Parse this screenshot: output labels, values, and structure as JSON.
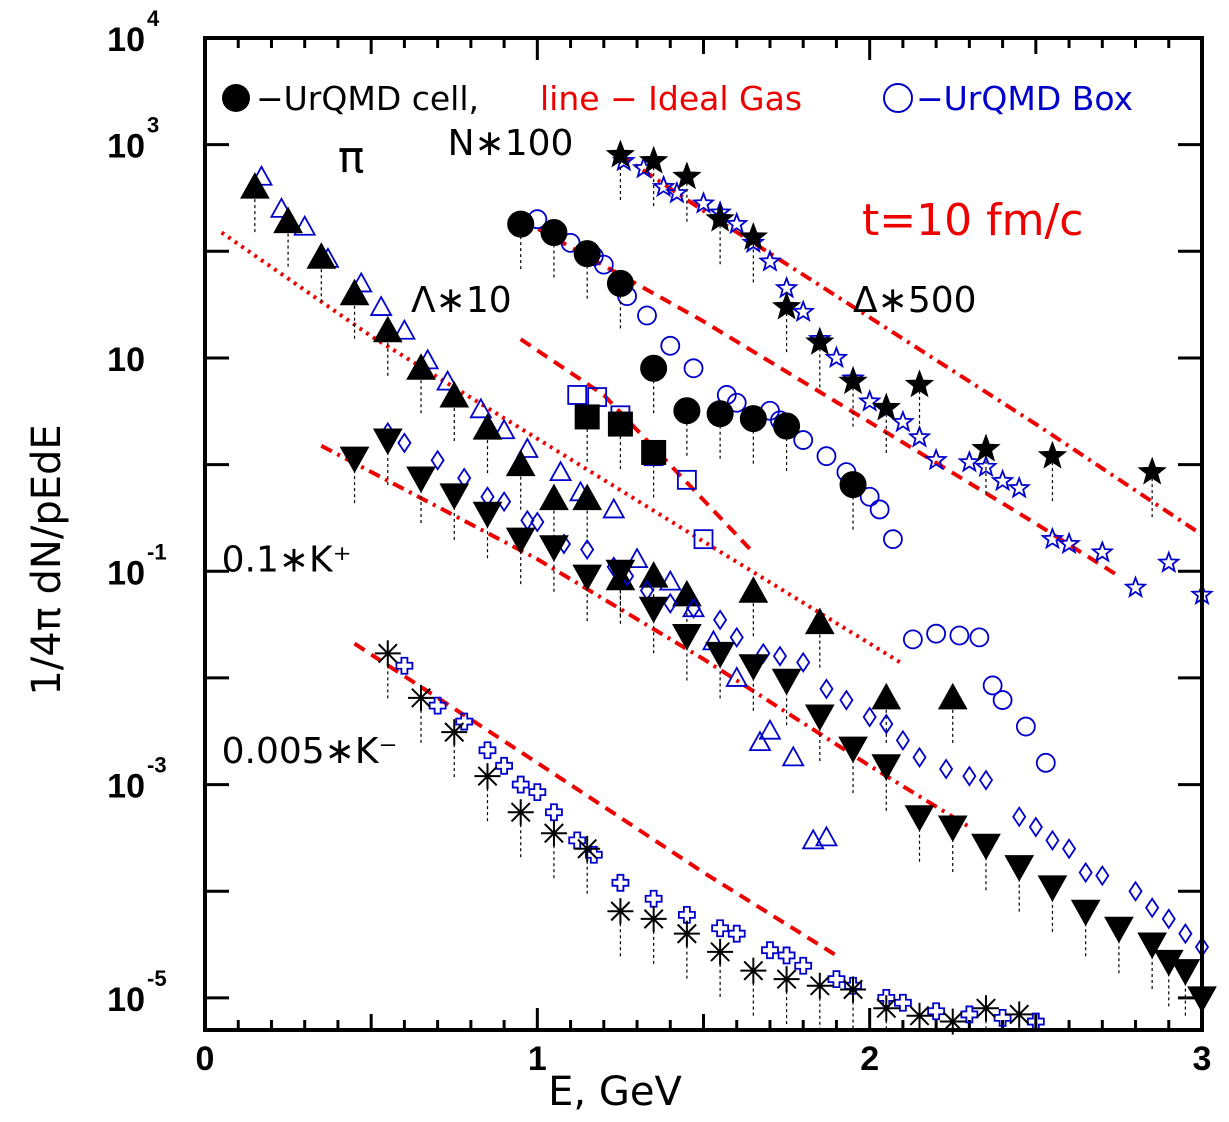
{
  "chart_data": {
    "type": "scatter",
    "xlabel": "E, GeV",
    "ylabel": "1/4π dN/pEdE",
    "xlim": [
      0,
      3
    ],
    "ylim": [
      5e-06,
      10000
    ],
    "yscale": "log",
    "x_ticks": [
      0,
      1,
      2,
      3
    ],
    "y_ticks": [
      {
        "value": 10000,
        "base": "10",
        "exp": "4"
      },
      {
        "value": 1000,
        "base": "10",
        "exp": "3"
      },
      {
        "value": 10,
        "base": "10",
        "exp": ""
      },
      {
        "value": 0.1,
        "base": "10",
        "exp": "-1"
      },
      {
        "value": 0.001,
        "base": "10",
        "exp": "-3"
      },
      {
        "value": 1e-05,
        "base": "10",
        "exp": "-5"
      }
    ],
    "legend": {
      "cell_text": "−UrQMD cell,",
      "gas_text": "line − Ideal Gas",
      "box_text": "−UrQMD Box"
    },
    "time_label": "t=10 fm/c",
    "colors": {
      "cell": "#000000",
      "box": "#0000cc",
      "gas": "#ee0000"
    },
    "species": [
      {
        "label": "π",
        "cell_marker": "triangle-up",
        "box_marker": "triangle-up-open",
        "cell": [
          [
            0.15,
            400
          ],
          [
            0.25,
            190
          ],
          [
            0.35,
            88
          ],
          [
            0.45,
            40
          ],
          [
            0.55,
            18
          ],
          [
            0.65,
            8
          ],
          [
            0.75,
            4.4
          ],
          [
            0.85,
            2.2
          ],
          [
            0.95,
            1.0
          ],
          [
            1.05,
            0.48
          ],
          [
            1.15,
            0.48
          ],
          [
            1.25,
            0.085
          ],
          [
            1.35,
            0.09
          ],
          [
            1.45,
            0.06
          ],
          [
            1.65,
            0.065
          ],
          [
            1.85,
            0.033
          ],
          [
            2.05,
            0.0065
          ],
          [
            2.25,
            0.0065
          ]
        ],
        "box": [
          [
            0.17,
            500
          ],
          [
            0.23,
            250
          ],
          [
            0.3,
            170
          ],
          [
            0.37,
            85
          ],
          [
            0.47,
            50
          ],
          [
            0.53,
            30
          ],
          [
            0.6,
            18
          ],
          [
            0.67,
            9.5
          ],
          [
            0.73,
            6
          ],
          [
            0.83,
            3.3
          ],
          [
            0.9,
            2.1
          ],
          [
            0.97,
            1.4
          ],
          [
            1.07,
            0.85
          ],
          [
            1.13,
            0.55
          ],
          [
            1.23,
            0.38
          ],
          [
            1.3,
            0.13
          ],
          [
            1.4,
            0.08
          ],
          [
            1.47,
            0.045
          ],
          [
            1.53,
            0.022
          ],
          [
            1.6,
            0.01
          ],
          [
            1.67,
            0.0025
          ],
          [
            1.7,
            0.0032
          ],
          [
            1.77,
            0.0018
          ],
          [
            1.83,
            0.0003
          ],
          [
            1.87,
            0.00032
          ]
        ]
      },
      {
        "label": "Λ∗10",
        "cell_marker": "square",
        "box_marker": "square-open",
        "cell": [
          [
            1.15,
            2.8
          ],
          [
            1.25,
            2.4
          ],
          [
            1.35,
            1.3
          ]
        ],
        "box": [
          [
            1.12,
            4.5
          ],
          [
            1.18,
            4.3
          ],
          [
            1.25,
            2.9
          ],
          [
            1.35,
            1.2
          ],
          [
            1.45,
            0.72
          ],
          [
            1.5,
            0.2
          ]
        ]
      },
      {
        "label": "N∗100",
        "cell_marker": "circle",
        "box_marker": "circle-open",
        "cell": [
          [
            0.95,
            180
          ],
          [
            1.05,
            150
          ],
          [
            1.15,
            95
          ],
          [
            1.25,
            50
          ],
          [
            1.35,
            8
          ],
          [
            1.45,
            3.2
          ],
          [
            1.55,
            3.0
          ],
          [
            1.65,
            2.7
          ],
          [
            1.75,
            2.3
          ],
          [
            1.95,
            0.65
          ]
        ],
        "box": [
          [
            1.0,
            200
          ],
          [
            1.1,
            120
          ],
          [
            1.17,
            90
          ],
          [
            1.2,
            75
          ],
          [
            1.27,
            38
          ],
          [
            1.33,
            25
          ],
          [
            1.4,
            13
          ],
          [
            1.47,
            8
          ],
          [
            1.57,
            4.5
          ],
          [
            1.6,
            3.8
          ],
          [
            1.7,
            3.2
          ],
          [
            1.73,
            2.6
          ],
          [
            1.8,
            1.7
          ],
          [
            1.87,
            1.2
          ],
          [
            1.93,
            0.85
          ],
          [
            2.0,
            0.5
          ],
          [
            2.03,
            0.38
          ],
          [
            2.07,
            0.2
          ],
          [
            2.13,
            0.023
          ],
          [
            2.2,
            0.026
          ],
          [
            2.27,
            0.025
          ],
          [
            2.33,
            0.024
          ],
          [
            2.37,
            0.0085
          ],
          [
            2.4,
            0.0062
          ],
          [
            2.47,
            0.0035
          ],
          [
            2.53,
            0.0016
          ]
        ]
      },
      {
        "label": "Δ∗500",
        "cell_marker": "star",
        "box_marker": "star-open",
        "cell": [
          [
            1.25,
            800
          ],
          [
            1.35,
            700
          ],
          [
            1.45,
            500
          ],
          [
            1.55,
            200
          ],
          [
            1.65,
            135
          ],
          [
            1.75,
            30
          ],
          [
            1.85,
            14
          ],
          [
            1.95,
            6
          ],
          [
            2.05,
            3.4
          ],
          [
            2.15,
            5.6
          ],
          [
            2.35,
            1.4
          ],
          [
            2.55,
            1.2
          ],
          [
            2.85,
            0.85
          ]
        ],
        "box": [
          [
            1.26,
            700
          ],
          [
            1.32,
            600
          ],
          [
            1.38,
            400
          ],
          [
            1.42,
            350
          ],
          [
            1.5,
            280
          ],
          [
            1.55,
            230
          ],
          [
            1.6,
            180
          ],
          [
            1.65,
            120
          ],
          [
            1.7,
            80
          ],
          [
            1.75,
            45
          ],
          [
            1.8,
            27
          ],
          [
            1.85,
            15
          ],
          [
            1.9,
            10
          ],
          [
            1.95,
            6.4
          ],
          [
            2.0,
            3.9
          ],
          [
            2.05,
            3.3
          ],
          [
            2.1,
            2.5
          ],
          [
            2.15,
            1.8
          ],
          [
            2.2,
            1.1
          ],
          [
            2.3,
            1.05
          ],
          [
            2.35,
            0.95
          ],
          [
            2.4,
            0.7
          ],
          [
            2.45,
            0.6
          ],
          [
            2.55,
            0.2
          ],
          [
            2.6,
            0.18
          ],
          [
            2.7,
            0.15
          ],
          [
            2.8,
            0.07
          ],
          [
            2.9,
            0.12
          ],
          [
            3.0,
            0.06
          ]
        ]
      },
      {
        "label": "0.1∗K⁺",
        "cell_marker": "triangle-down",
        "box_marker": "diamond-open",
        "cell": [
          [
            0.45,
            1.15
          ],
          [
            0.55,
            1.7
          ],
          [
            0.65,
            0.75
          ],
          [
            0.75,
            0.52
          ],
          [
            0.85,
            0.35
          ],
          [
            0.95,
            0.2
          ],
          [
            1.05,
            0.17
          ],
          [
            1.15,
            0.09
          ],
          [
            1.25,
            0.1
          ],
          [
            1.35,
            0.045
          ],
          [
            1.45,
            0.025
          ],
          [
            1.55,
            0.017
          ],
          [
            1.65,
            0.013
          ],
          [
            1.75,
            0.0095
          ],
          [
            1.85,
            0.0044
          ],
          [
            1.95,
            0.0022
          ],
          [
            2.05,
            0.0015
          ],
          [
            2.15,
            0.0005
          ],
          [
            2.25,
            0.0004
          ],
          [
            2.35,
            0.00027
          ],
          [
            2.45,
            0.00017
          ],
          [
            2.55,
            0.00011
          ],
          [
            2.65,
            6.5e-05
          ],
          [
            2.75,
            4.5e-05
          ],
          [
            2.85,
            3.2e-05
          ],
          [
            2.9,
            2.2e-05
          ],
          [
            2.95,
            1.8e-05
          ],
          [
            3.0,
            1e-05
          ]
        ],
        "box": [
          [
            0.55,
            2.0
          ],
          [
            0.6,
            1.6
          ],
          [
            0.7,
            1.1
          ],
          [
            0.78,
            0.75
          ],
          [
            0.85,
            0.5
          ],
          [
            0.9,
            0.45
          ],
          [
            0.97,
            0.3
          ],
          [
            1.0,
            0.29
          ],
          [
            1.08,
            0.18
          ],
          [
            1.15,
            0.16
          ],
          [
            1.23,
            0.11
          ],
          [
            1.27,
            0.09
          ],
          [
            1.33,
            0.066
          ],
          [
            1.4,
            0.05
          ],
          [
            1.47,
            0.045
          ],
          [
            1.55,
            0.035
          ],
          [
            1.6,
            0.024
          ],
          [
            1.68,
            0.017
          ],
          [
            1.73,
            0.016
          ],
          [
            1.8,
            0.014
          ],
          [
            1.87,
            0.0079
          ],
          [
            1.93,
            0.0062
          ],
          [
            2.0,
            0.0043
          ],
          [
            2.05,
            0.0037
          ],
          [
            2.1,
            0.0026
          ],
          [
            2.15,
            0.0018
          ],
          [
            2.23,
            0.0014
          ],
          [
            2.3,
            0.0012
          ],
          [
            2.35,
            0.0011
          ],
          [
            2.45,
            0.0005
          ],
          [
            2.5,
            0.0004
          ],
          [
            2.55,
            0.0003
          ],
          [
            2.6,
            0.00025
          ],
          [
            2.65,
            0.00015
          ],
          [
            2.7,
            0.00014
          ],
          [
            2.8,
            0.0001
          ],
          [
            2.85,
            7e-05
          ],
          [
            2.9,
            5.5e-05
          ],
          [
            2.95,
            4e-05
          ],
          [
            3.0,
            3e-05
          ]
        ]
      },
      {
        "label": "0.005∗K⁻",
        "cell_marker": "asterisk",
        "box_marker": "cross-open",
        "cell": [
          [
            0.55,
            0.017
          ],
          [
            0.65,
            0.0065
          ],
          [
            0.75,
            0.0031
          ],
          [
            0.85,
            0.0012
          ],
          [
            0.95,
            0.00055
          ],
          [
            1.05,
            0.00035
          ],
          [
            1.15,
            0.00025
          ],
          [
            1.25,
            6.5e-05
          ],
          [
            1.35,
            5.5e-05
          ],
          [
            1.45,
            4e-05
          ],
          [
            1.55,
            2.7e-05
          ],
          [
            1.65,
            1.8e-05
          ],
          [
            1.75,
            1.5e-05
          ],
          [
            1.85,
            1.3e-05
          ],
          [
            1.95,
            1.2e-05
          ],
          [
            2.05,
            8e-06
          ],
          [
            2.15,
            6.8e-06
          ],
          [
            2.25,
            6e-06
          ],
          [
            2.35,
            8e-06
          ],
          [
            2.45,
            7e-06
          ]
        ],
        "box": [
          [
            0.6,
            0.013
          ],
          [
            0.7,
            0.0055
          ],
          [
            0.78,
            0.0039
          ],
          [
            0.85,
            0.0021
          ],
          [
            0.9,
            0.0015
          ],
          [
            0.95,
            0.001
          ],
          [
            1.0,
            0.00085
          ],
          [
            1.05,
            0.00055
          ],
          [
            1.12,
            0.0003
          ],
          [
            1.17,
            0.00022
          ],
          [
            1.25,
            0.00012
          ],
          [
            1.35,
            8.5e-05
          ],
          [
            1.45,
            6e-05
          ],
          [
            1.55,
            4.5e-05
          ],
          [
            1.6,
            4e-05
          ],
          [
            1.7,
            2.8e-05
          ],
          [
            1.75,
            2.5e-05
          ],
          [
            1.8,
            2e-05
          ],
          [
            1.9,
            1.5e-05
          ],
          [
            1.95,
            1.3e-05
          ],
          [
            2.05,
            1e-05
          ],
          [
            2.1,
            9e-06
          ],
          [
            2.2,
            7.5e-06
          ],
          [
            2.3,
            7e-06
          ],
          [
            2.4,
            6.5e-06
          ],
          [
            2.5,
            6e-06
          ]
        ]
      }
    ],
    "ideal_gas_lines": [
      {
        "species": "π",
        "points": [
          [
            0.05,
            150
          ],
          [
            0.5,
            16
          ],
          [
            1.0,
            1.75
          ],
          [
            1.5,
            0.19
          ],
          [
            2.0,
            0.021
          ],
          [
            2.1,
            0.0135
          ]
        ],
        "style": "dotted"
      },
      {
        "species": "Λ∗10",
        "points": [
          [
            0.95,
            15
          ],
          [
            1.2,
            4.5
          ],
          [
            1.65,
            0.15
          ]
        ],
        "style": "dashed"
      },
      {
        "species": "N∗100",
        "points": [
          [
            0.95,
            200
          ],
          [
            1.5,
            22
          ],
          [
            2.0,
            2.5
          ],
          [
            2.5,
            0.28
          ],
          [
            2.75,
            0.09
          ]
        ],
        "style": "dashed"
      },
      {
        "species": "Δ∗500",
        "points": [
          [
            1.25,
            800
          ],
          [
            1.5,
            240
          ],
          [
            2.0,
            24
          ],
          [
            2.5,
            2.4
          ],
          [
            3.0,
            0.22
          ]
        ],
        "style": "dash-dot"
      },
      {
        "species": "0.1∗K⁺",
        "points": [
          [
            0.35,
            1.5
          ],
          [
            1.0,
            0.13
          ],
          [
            1.5,
            0.015
          ],
          [
            2.0,
            0.0015
          ],
          [
            2.3,
            0.0004
          ]
        ],
        "style": "dash-dot"
      },
      {
        "species": "0.005∗K⁻",
        "points": [
          [
            0.45,
            0.021
          ],
          [
            1.0,
            0.0016
          ],
          [
            1.5,
            0.00015
          ],
          [
            1.9,
            2.5e-05
          ]
        ],
        "style": "dashed"
      }
    ],
    "annotations": [
      {
        "text": "π",
        "x": 0.4,
        "y": 550
      },
      {
        "text": "N∗100",
        "x": 0.73,
        "y": 800
      },
      {
        "text": "Λ∗10",
        "x": 0.62,
        "y": 27
      },
      {
        "text": "Δ∗500",
        "x": 1.95,
        "y": 27
      },
      {
        "text": "0.1∗K⁺",
        "x": 0.05,
        "y": 0.1
      },
      {
        "text": "0.005∗K⁻",
        "x": 0.05,
        "y": 0.0016
      }
    ]
  }
}
